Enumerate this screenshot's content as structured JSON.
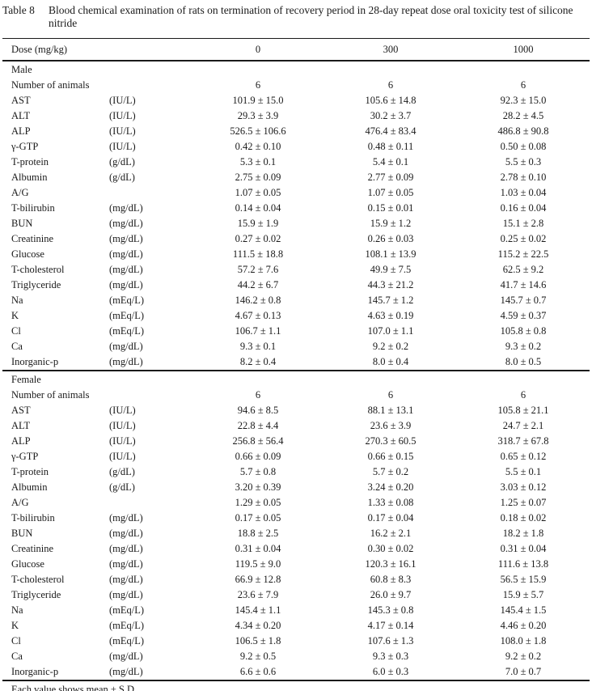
{
  "title": {
    "tag": "Table 8",
    "text": "Blood chemical examination of rats on termination of recovery period in 28-day repeat dose oral toxicity test of silicone nitride"
  },
  "header": {
    "dose_label": "Dose (mg/kg)",
    "doses": [
      "0",
      "300",
      "1000"
    ]
  },
  "sections": [
    {
      "name": "Male",
      "rows": [
        {
          "param": "Number of animals",
          "unit": "",
          "values": [
            "6",
            "6",
            "6"
          ]
        },
        {
          "param": "AST",
          "unit": "(IU/L)",
          "values": [
            "101.9 ± 15.0",
            "105.6 ± 14.8",
            "92.3 ± 15.0"
          ]
        },
        {
          "param": "ALT",
          "unit": "(IU/L)",
          "values": [
            "29.3 ± 3.9",
            "30.2 ± 3.7",
            "28.2 ± 4.5"
          ]
        },
        {
          "param": "ALP",
          "unit": "(IU/L)",
          "values": [
            "526.5 ± 106.6",
            "476.4 ± 83.4",
            "486.8 ± 90.8"
          ]
        },
        {
          "param": "γ-GTP",
          "unit": "(IU/L)",
          "values": [
            "0.42 ± 0.10",
            "0.48 ± 0.11",
            "0.50 ± 0.08"
          ]
        },
        {
          "param": "T-protein",
          "unit": "(g/dL)",
          "values": [
            "5.3 ± 0.1",
            "5.4 ± 0.1",
            "5.5 ± 0.3"
          ]
        },
        {
          "param": "Albumin",
          "unit": "(g/dL)",
          "values": [
            "2.75 ± 0.09",
            "2.77 ± 0.09",
            "2.78 ± 0.10"
          ]
        },
        {
          "param": "A/G",
          "unit": "",
          "values": [
            "1.07 ± 0.05",
            "1.07 ± 0.05",
            "1.03 ± 0.04"
          ]
        },
        {
          "param": "T-bilirubin",
          "unit": "(mg/dL)",
          "values": [
            "0.14 ± 0.04",
            "0.15 ± 0.01",
            "0.16 ± 0.04"
          ]
        },
        {
          "param": "BUN",
          "unit": "(mg/dL)",
          "values": [
            "15.9 ± 1.9",
            "15.9 ± 1.2",
            "15.1 ± 2.8"
          ]
        },
        {
          "param": "Creatinine",
          "unit": "(mg/dL)",
          "values": [
            "0.27 ± 0.02",
            "0.26 ± 0.03",
            "0.25 ± 0.02"
          ]
        },
        {
          "param": "Glucose",
          "unit": "(mg/dL)",
          "values": [
            "111.5 ± 18.8",
            "108.1 ± 13.9",
            "115.2 ± 22.5"
          ]
        },
        {
          "param": "T-cholesterol",
          "unit": "(mg/dL)",
          "values": [
            "57.2 ± 7.6",
            "49.9 ± 7.5",
            "62.5 ± 9.2"
          ]
        },
        {
          "param": "Triglyceride",
          "unit": "(mg/dL)",
          "values": [
            "44.2 ± 6.7",
            "44.3 ± 21.2",
            "41.7 ± 14.6"
          ]
        },
        {
          "param": "Na",
          "unit": "(mEq/L)",
          "values": [
            "146.2 ± 0.8",
            "145.7 ± 1.2",
            "145.7 ± 0.7"
          ]
        },
        {
          "param": "K",
          "unit": "(mEq/L)",
          "values": [
            "4.67 ± 0.13",
            "4.63 ± 0.19",
            "4.59 ± 0.37"
          ]
        },
        {
          "param": "Cl",
          "unit": "(mEq/L)",
          "values": [
            "106.7 ± 1.1",
            "107.0 ± 1.1",
            "105.8 ± 0.8"
          ]
        },
        {
          "param": "Ca",
          "unit": "(mg/dL)",
          "values": [
            "9.3 ± 0.1",
            "9.2 ± 0.2",
            "9.3 ± 0.2"
          ]
        },
        {
          "param": "Inorganic-p",
          "unit": "(mg/dL)",
          "values": [
            "8.2 ± 0.4",
            "8.0 ± 0.4",
            "8.0 ± 0.5"
          ]
        }
      ]
    },
    {
      "name": "Female",
      "rows": [
        {
          "param": "Number of animals",
          "unit": "",
          "values": [
            "6",
            "6",
            "6"
          ]
        },
        {
          "param": "AST",
          "unit": "(IU/L)",
          "values": [
            "94.6 ± 8.5",
            "88.1 ± 13.1",
            "105.8 ± 21.1"
          ]
        },
        {
          "param": "ALT",
          "unit": "(IU/L)",
          "values": [
            "22.8 ± 4.4",
            "23.6 ± 3.9",
            "24.7 ± 2.1"
          ]
        },
        {
          "param": "ALP",
          "unit": "(IU/L)",
          "values": [
            "256.8 ± 56.4",
            "270.3 ± 60.5",
            "318.7 ± 67.8"
          ]
        },
        {
          "param": "γ-GTP",
          "unit": "(IU/L)",
          "values": [
            "0.66 ± 0.09",
            "0.66 ± 0.15",
            "0.65 ± 0.12"
          ]
        },
        {
          "param": "T-protein",
          "unit": "(g/dL)",
          "values": [
            "5.7 ± 0.8",
            "5.7 ± 0.2",
            "5.5 ± 0.1"
          ]
        },
        {
          "param": "Albumin",
          "unit": "(g/dL)",
          "values": [
            "3.20 ± 0.39",
            "3.24 ± 0.20",
            "3.03 ± 0.12"
          ]
        },
        {
          "param": "A/G",
          "unit": "",
          "values": [
            "1.29 ± 0.05",
            "1.33 ± 0.08",
            "1.25 ± 0.07"
          ]
        },
        {
          "param": "T-bilirubin",
          "unit": "(mg/dL)",
          "values": [
            "0.17 ± 0.05",
            "0.17 ± 0.04",
            "0.18 ± 0.02"
          ]
        },
        {
          "param": "BUN",
          "unit": "(mg/dL)",
          "values": [
            "18.8 ± 2.5",
            "16.2 ± 2.1",
            "18.2 ± 1.8"
          ]
        },
        {
          "param": "Creatinine",
          "unit": "(mg/dL)",
          "values": [
            "0.31 ± 0.04",
            "0.30 ± 0.02",
            "0.31 ± 0.04"
          ]
        },
        {
          "param": "Glucose",
          "unit": "(mg/dL)",
          "values": [
            "119.5 ± 9.0",
            "120.3 ± 16.1",
            "111.6 ± 13.8"
          ]
        },
        {
          "param": "T-cholesterol",
          "unit": "(mg/dL)",
          "values": [
            "66.9 ± 12.8",
            "60.8 ± 8.3",
            "56.5 ± 15.9"
          ]
        },
        {
          "param": "Triglyceride",
          "unit": "(mg/dL)",
          "values": [
            "23.6 ± 7.9",
            "26.0 ± 9.7",
            "15.9 ± 5.7"
          ]
        },
        {
          "param": "Na",
          "unit": "(mEq/L)",
          "values": [
            "145.4 ± 1.1",
            "145.3 ± 0.8",
            "145.4 ± 1.5"
          ]
        },
        {
          "param": "K",
          "unit": "(mEq/L)",
          "values": [
            "4.34 ± 0.20",
            "4.17 ± 0.14",
            "4.46 ± 0.20"
          ]
        },
        {
          "param": "Cl",
          "unit": "(mEq/L)",
          "values": [
            "106.5 ± 1.8",
            "107.6 ± 1.3",
            "108.0 ± 1.8"
          ]
        },
        {
          "param": "Ca",
          "unit": "(mg/dL)",
          "values": [
            "9.2 ± 0.5",
            "9.3 ± 0.3",
            "9.2 ± 0.2"
          ]
        },
        {
          "param": "Inorganic-p",
          "unit": "(mg/dL)",
          "values": [
            "6.6 ± 0.6",
            "6.0 ± 0.3",
            "7.0 ± 0.7"
          ]
        }
      ]
    }
  ],
  "footnote": "Each value shows mean ± S.D."
}
